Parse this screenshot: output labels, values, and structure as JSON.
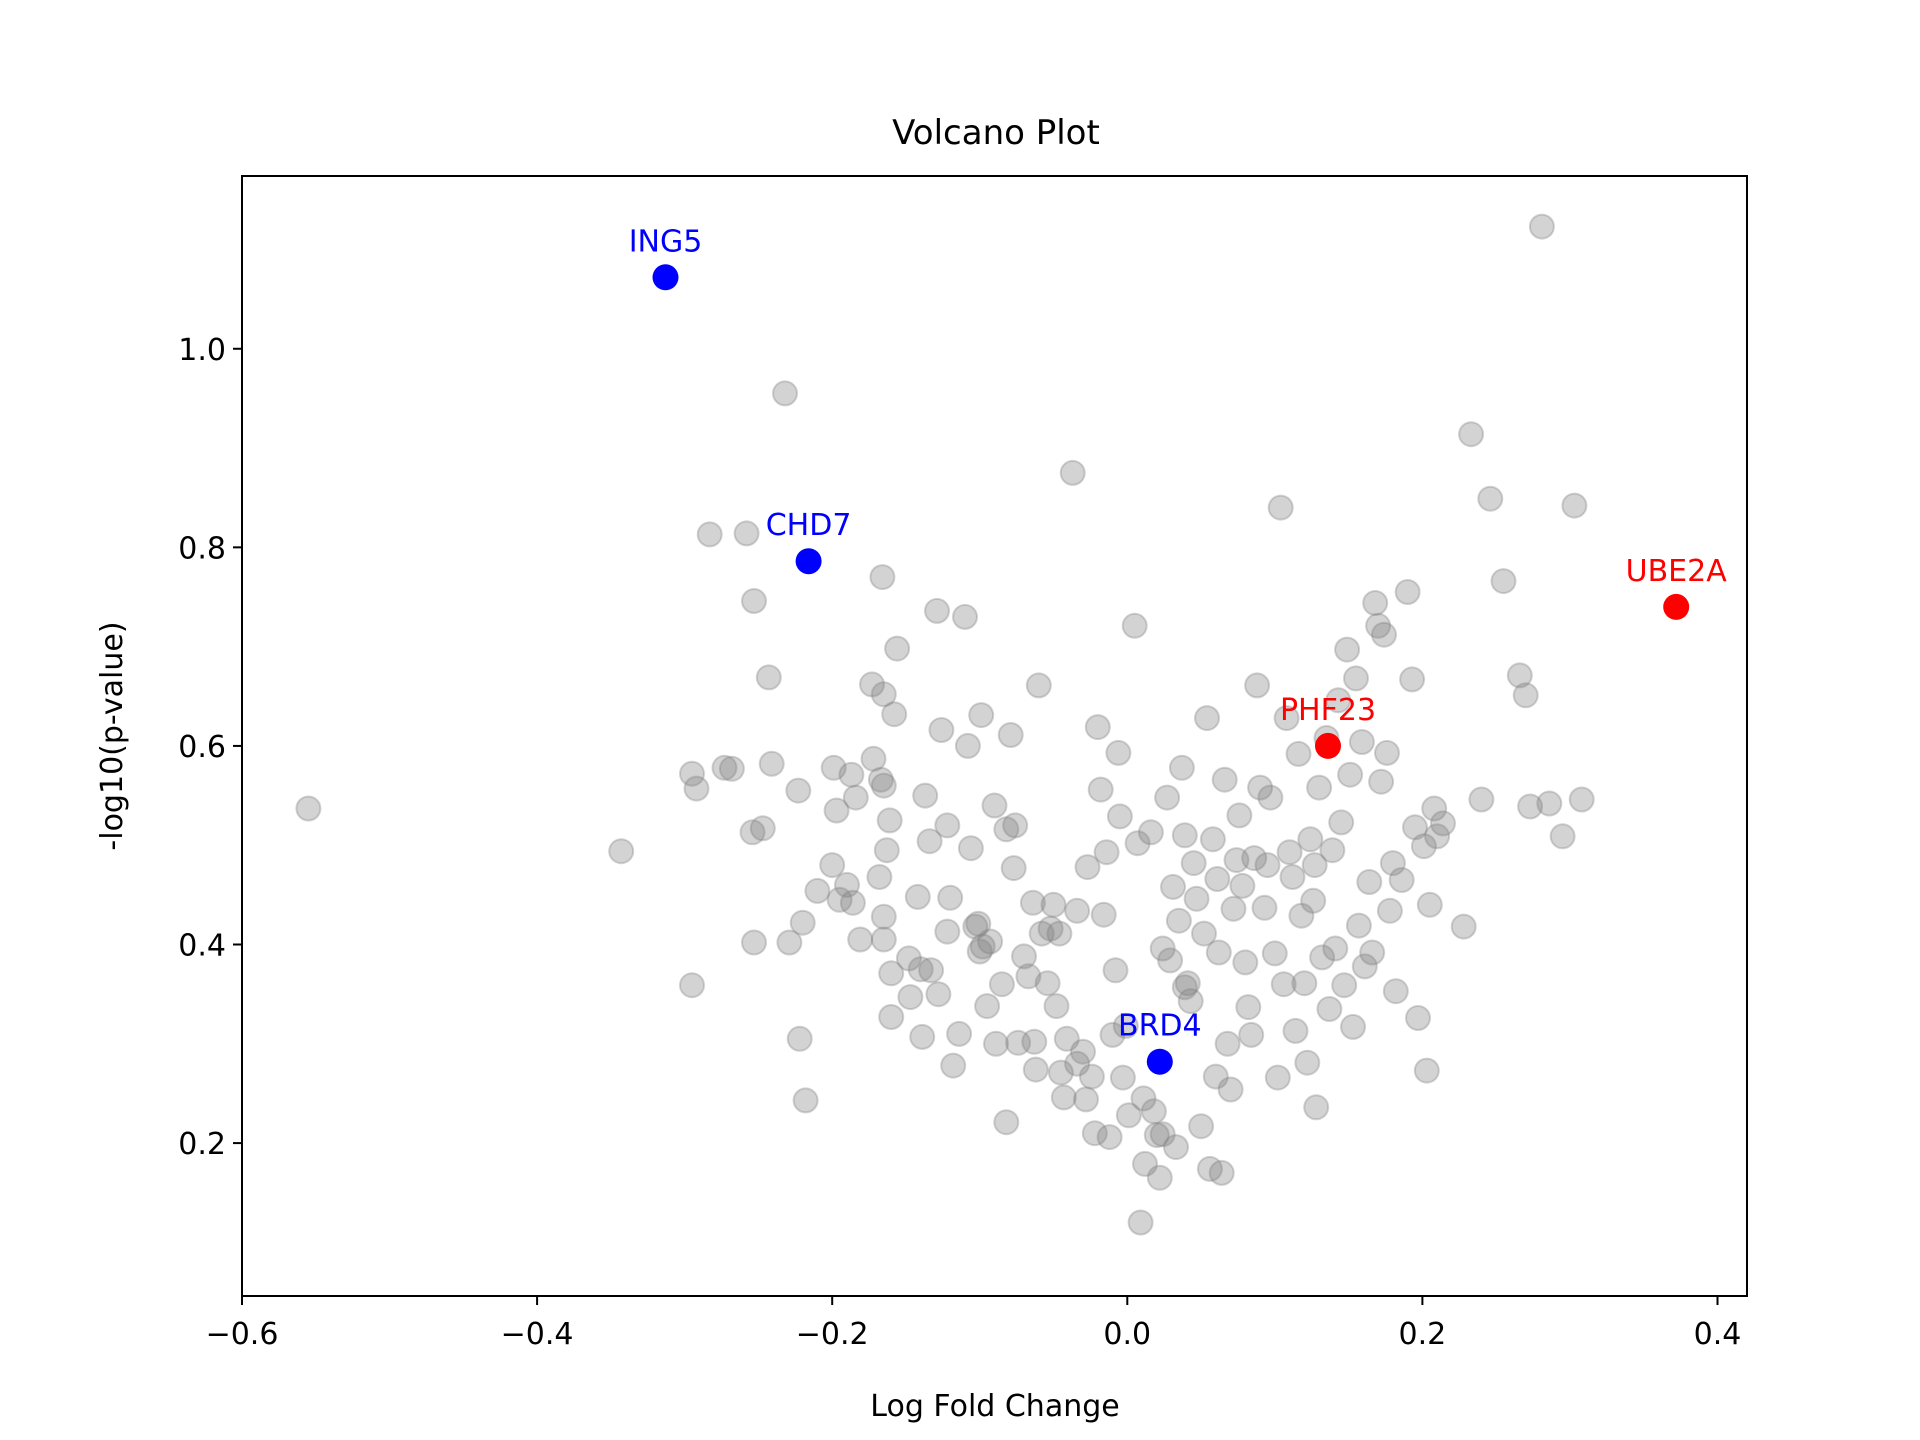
{
  "chart_data": {
    "type": "scatter",
    "title": "Volcano Plot",
    "xlabel": "Log Fold Change",
    "ylabel": "-log10(p-value)",
    "xlim": [
      -0.6,
      0.42
    ],
    "ylim": [
      0.046,
      1.174
    ],
    "x_ticks": [
      -0.6,
      -0.4,
      -0.2,
      0.0,
      0.2,
      0.4
    ],
    "x_tick_labels": [
      "−0.6",
      "−0.4",
      "−0.2",
      "0.0",
      "0.2",
      "0.4"
    ],
    "y_ticks": [
      0.2,
      0.4,
      0.6,
      0.8,
      1.0
    ],
    "y_tick_labels": [
      "0.2",
      "0.4",
      "0.6",
      "0.8",
      "1.0"
    ],
    "grid": false,
    "legend": "none",
    "background_points": {
      "color": "#808080",
      "alpha": 0.35,
      "points": [
        [
          -0.555,
          0.537
        ],
        [
          -0.343,
          0.494
        ],
        [
          -0.295,
          0.359
        ],
        [
          -0.295,
          0.572
        ],
        [
          -0.292,
          0.557
        ],
        [
          -0.283,
          0.813
        ],
        [
          -0.273,
          0.578
        ],
        [
          -0.268,
          0.577
        ],
        [
          -0.258,
          0.814
        ],
        [
          -0.254,
          0.513
        ],
        [
          -0.253,
          0.402
        ],
        [
          -0.253,
          0.746
        ],
        [
          -0.247,
          0.517
        ],
        [
          -0.243,
          0.669
        ],
        [
          -0.241,
          0.582
        ],
        [
          -0.232,
          0.955
        ],
        [
          -0.229,
          0.402
        ],
        [
          -0.223,
          0.555
        ],
        [
          -0.222,
          0.305
        ],
        [
          -0.22,
          0.422
        ],
        [
          -0.218,
          0.243
        ],
        [
          -0.21,
          0.454
        ],
        [
          -0.2,
          0.48
        ],
        [
          -0.199,
          0.578
        ],
        [
          -0.197,
          0.535
        ],
        [
          -0.195,
          0.445
        ],
        [
          -0.19,
          0.46
        ],
        [
          -0.187,
          0.571
        ],
        [
          -0.186,
          0.442
        ],
        [
          -0.184,
          0.548
        ],
        [
          -0.181,
          0.405
        ],
        [
          -0.173,
          0.662
        ],
        [
          -0.172,
          0.587
        ],
        [
          -0.168,
          0.468
        ],
        [
          -0.167,
          0.566
        ],
        [
          -0.166,
          0.77
        ],
        [
          -0.165,
          0.652
        ],
        [
          -0.165,
          0.405
        ],
        [
          -0.165,
          0.428
        ],
        [
          -0.163,
          0.495
        ],
        [
          -0.165,
          0.56
        ],
        [
          -0.161,
          0.525
        ],
        [
          -0.16,
          0.371
        ],
        [
          -0.16,
          0.327
        ],
        [
          -0.158,
          0.632
        ],
        [
          -0.156,
          0.698
        ],
        [
          -0.148,
          0.386
        ],
        [
          -0.147,
          0.347
        ],
        [
          -0.142,
          0.448
        ],
        [
          -0.14,
          0.375
        ],
        [
          -0.139,
          0.307
        ],
        [
          -0.137,
          0.55
        ],
        [
          -0.134,
          0.504
        ],
        [
          -0.133,
          0.374
        ],
        [
          -0.128,
          0.35
        ],
        [
          -0.129,
          0.736
        ],
        [
          -0.126,
          0.616
        ],
        [
          -0.122,
          0.413
        ],
        [
          -0.122,
          0.52
        ],
        [
          -0.12,
          0.447
        ],
        [
          -0.118,
          0.278
        ],
        [
          -0.114,
          0.31
        ],
        [
          -0.11,
          0.73
        ],
        [
          -0.108,
          0.6
        ],
        [
          -0.106,
          0.497
        ],
        [
          -0.103,
          0.418
        ],
        [
          -0.101,
          0.421
        ],
        [
          -0.1,
          0.393
        ],
        [
          -0.099,
          0.631
        ],
        [
          -0.098,
          0.398
        ],
        [
          -0.095,
          0.338
        ],
        [
          -0.093,
          0.403
        ],
        [
          -0.09,
          0.54
        ],
        [
          -0.089,
          0.3
        ],
        [
          -0.085,
          0.36
        ],
        [
          -0.082,
          0.516
        ],
        [
          -0.079,
          0.611
        ],
        [
          -0.077,
          0.477
        ],
        [
          -0.076,
          0.52
        ],
        [
          -0.074,
          0.301
        ],
        [
          -0.07,
          0.388
        ],
        [
          -0.067,
          0.368
        ],
        [
          -0.064,
          0.442
        ],
        [
          -0.063,
          0.302
        ],
        [
          -0.062,
          0.274
        ],
        [
          -0.06,
          0.661
        ],
        [
          -0.058,
          0.411
        ],
        [
          -0.054,
          0.361
        ],
        [
          -0.052,
          0.416
        ],
        [
          -0.05,
          0.44
        ],
        [
          -0.048,
          0.338
        ],
        [
          -0.046,
          0.411
        ],
        [
          -0.043,
          0.246
        ],
        [
          -0.041,
          0.305
        ],
        [
          -0.037,
          0.875
        ],
        [
          -0.034,
          0.434
        ],
        [
          -0.034,
          0.28
        ],
        [
          -0.03,
          0.292
        ],
        [
          -0.028,
          0.244
        ],
        [
          -0.027,
          0.478
        ],
        [
          -0.024,
          0.267
        ],
        [
          -0.022,
          0.21
        ],
        [
          -0.02,
          0.619
        ],
        [
          -0.018,
          0.556
        ],
        [
          -0.016,
          0.43
        ],
        [
          -0.014,
          0.493
        ],
        [
          -0.012,
          0.206
        ],
        [
          -0.01,
          0.309
        ],
        [
          -0.008,
          0.374
        ],
        [
          -0.006,
          0.593
        ],
        [
          -0.005,
          0.529
        ],
        [
          -0.003,
          0.266
        ],
        [
          -0.001,
          0.318
        ],
        [
          0.001,
          0.228
        ],
        [
          0.005,
          0.721
        ],
        [
          0.007,
          0.502
        ],
        [
          0.009,
          0.12
        ],
        [
          0.012,
          0.179
        ],
        [
          0.016,
          0.513
        ],
        [
          0.018,
          0.232
        ],
        [
          0.02,
          0.208
        ],
        [
          0.022,
          0.165
        ],
        [
          0.024,
          0.396
        ],
        [
          0.027,
          0.548
        ],
        [
          0.029,
          0.384
        ],
        [
          0.031,
          0.458
        ],
        [
          0.033,
          0.196
        ],
        [
          0.035,
          0.424
        ],
        [
          0.037,
          0.578
        ],
        [
          0.039,
          0.51
        ],
        [
          0.041,
          0.361
        ],
        [
          0.043,
          0.343
        ],
        [
          0.045,
          0.482
        ],
        [
          0.047,
          0.446
        ],
        [
          0.05,
          0.217
        ],
        [
          0.052,
          0.411
        ],
        [
          0.054,
          0.628
        ],
        [
          0.056,
          0.174
        ],
        [
          0.058,
          0.506
        ],
        [
          0.06,
          0.267
        ],
        [
          0.062,
          0.392
        ],
        [
          0.064,
          0.17
        ],
        [
          0.066,
          0.566
        ],
        [
          0.068,
          0.3
        ],
        [
          0.07,
          0.254
        ],
        [
          0.072,
          0.436
        ],
        [
          0.074,
          0.485
        ],
        [
          0.076,
          0.53
        ],
        [
          0.078,
          0.459
        ],
        [
          0.08,
          0.382
        ],
        [
          0.082,
          0.337
        ],
        [
          0.084,
          0.309
        ],
        [
          0.086,
          0.487
        ],
        [
          0.088,
          0.661
        ],
        [
          0.09,
          0.558
        ],
        [
          0.093,
          0.437
        ],
        [
          0.095,
          0.48
        ],
        [
          0.097,
          0.548
        ],
        [
          0.1,
          0.391
        ],
        [
          0.102,
          0.266
        ],
        [
          0.104,
          0.84
        ],
        [
          0.106,
          0.36
        ],
        [
          0.108,
          0.628
        ],
        [
          0.11,
          0.493
        ],
        [
          0.112,
          0.468
        ],
        [
          0.114,
          0.313
        ],
        [
          0.116,
          0.592
        ],
        [
          0.118,
          0.429
        ],
        [
          0.12,
          0.361
        ],
        [
          0.122,
          0.281
        ],
        [
          0.124,
          0.506
        ],
        [
          0.126,
          0.444
        ],
        [
          0.128,
          0.236
        ],
        [
          0.13,
          0.558
        ],
        [
          0.132,
          0.387
        ],
        [
          0.135,
          0.608
        ],
        [
          0.137,
          0.335
        ],
        [
          0.139,
          0.495
        ],
        [
          0.141,
          0.396
        ],
        [
          0.143,
          0.646
        ],
        [
          0.145,
          0.523
        ],
        [
          0.147,
          0.359
        ],
        [
          0.149,
          0.697
        ],
        [
          0.151,
          0.571
        ],
        [
          0.153,
          0.317
        ],
        [
          0.155,
          0.668
        ],
        [
          0.157,
          0.419
        ],
        [
          0.159,
          0.604
        ],
        [
          0.161,
          0.378
        ],
        [
          0.164,
          0.463
        ],
        [
          0.166,
          0.392
        ],
        [
          0.168,
          0.744
        ],
        [
          0.17,
          0.721
        ],
        [
          0.172,
          0.564
        ],
        [
          0.174,
          0.712
        ],
        [
          0.176,
          0.593
        ],
        [
          0.178,
          0.434
        ],
        [
          0.18,
          0.482
        ],
        [
          0.182,
          0.353
        ],
        [
          0.186,
          0.465
        ],
        [
          0.19,
          0.755
        ],
        [
          0.193,
          0.667
        ],
        [
          0.195,
          0.518
        ],
        [
          0.197,
          0.326
        ],
        [
          0.201,
          0.499
        ],
        [
          0.203,
          0.273
        ],
        [
          0.205,
          0.44
        ],
        [
          0.208,
          0.537
        ],
        [
          0.21,
          0.509
        ],
        [
          0.214,
          0.522
        ],
        [
          0.228,
          0.418
        ],
        [
          0.233,
          0.914
        ],
        [
          0.24,
          0.546
        ],
        [
          0.246,
          0.849
        ],
        [
          0.255,
          0.766
        ],
        [
          0.266,
          0.671
        ],
        [
          0.27,
          0.651
        ],
        [
          0.273,
          0.539
        ],
        [
          0.281,
          1.123
        ],
        [
          0.286,
          0.542
        ],
        [
          0.295,
          0.509
        ],
        [
          0.303,
          0.842
        ],
        [
          0.308,
          0.546
        ],
        [
          0.039,
          0.357
        ],
        [
          0.011,
          0.245
        ],
        [
          -0.045,
          0.271
        ],
        [
          0.061,
          0.466
        ],
        [
          0.127,
          0.48
        ],
        [
          0.024,
          0.209
        ],
        [
          -0.082,
          0.221
        ]
      ]
    },
    "highlighted_points": [
      {
        "name": "ING5",
        "x": -0.313,
        "y": 1.072,
        "color": "#0000ff"
      },
      {
        "name": "CHD7",
        "x": -0.216,
        "y": 0.786,
        "color": "#0000ff"
      },
      {
        "name": "BRD4",
        "x": 0.022,
        "y": 0.282,
        "color": "#0000ff"
      },
      {
        "name": "PHF23",
        "x": 0.136,
        "y": 0.6,
        "color": "#ff0000"
      },
      {
        "name": "UBE2A",
        "x": 0.372,
        "y": 0.74,
        "color": "#ff0000"
      }
    ]
  }
}
